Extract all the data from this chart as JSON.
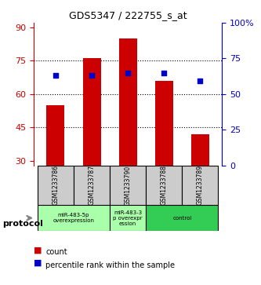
{
  "title": "GDS5347 / 222755_s_at",
  "samples": [
    "GSM1233786",
    "GSM1233787",
    "GSM1233790",
    "GSM1233788",
    "GSM1233789"
  ],
  "count_values": [
    55,
    76,
    85,
    66,
    42
  ],
  "percentile_values": [
    63,
    63,
    65,
    65,
    59
  ],
  "bar_bottom": 28,
  "ylim_left": [
    28,
    92
  ],
  "ylim_right": [
    0,
    100
  ],
  "yticks_left": [
    30,
    45,
    60,
    75,
    90
  ],
  "yticks_right": [
    0,
    25,
    50,
    75,
    100
  ],
  "ytick_labels_right": [
    "0",
    "25",
    "50",
    "75",
    "100%"
  ],
  "bar_color": "#cc0000",
  "scatter_color": "#0000cc",
  "grid_color": "#000000",
  "grid_style": "dotted",
  "protocol_groups": [
    {
      "label": "miR-483-5p\noverexpression",
      "samples": [
        0,
        1
      ],
      "color": "#aaffaa"
    },
    {
      "label": "miR-483-3\np overexpr\nession",
      "samples": [
        2
      ],
      "color": "#aaffaa"
    },
    {
      "label": "control",
      "samples": [
        3,
        4
      ],
      "color": "#22cc44"
    }
  ],
  "protocol_label": "protocol",
  "legend_count_label": "count",
  "legend_percentile_label": "percentile rank within the sample",
  "xlabel_color": "#cc0000",
  "ylabel_color": "#cc0000",
  "ylabel_right_color": "#0000cc",
  "bar_width": 0.5,
  "sample_label_color": "#000000",
  "figsize": [
    3.33,
    3.63
  ],
  "dpi": 100
}
